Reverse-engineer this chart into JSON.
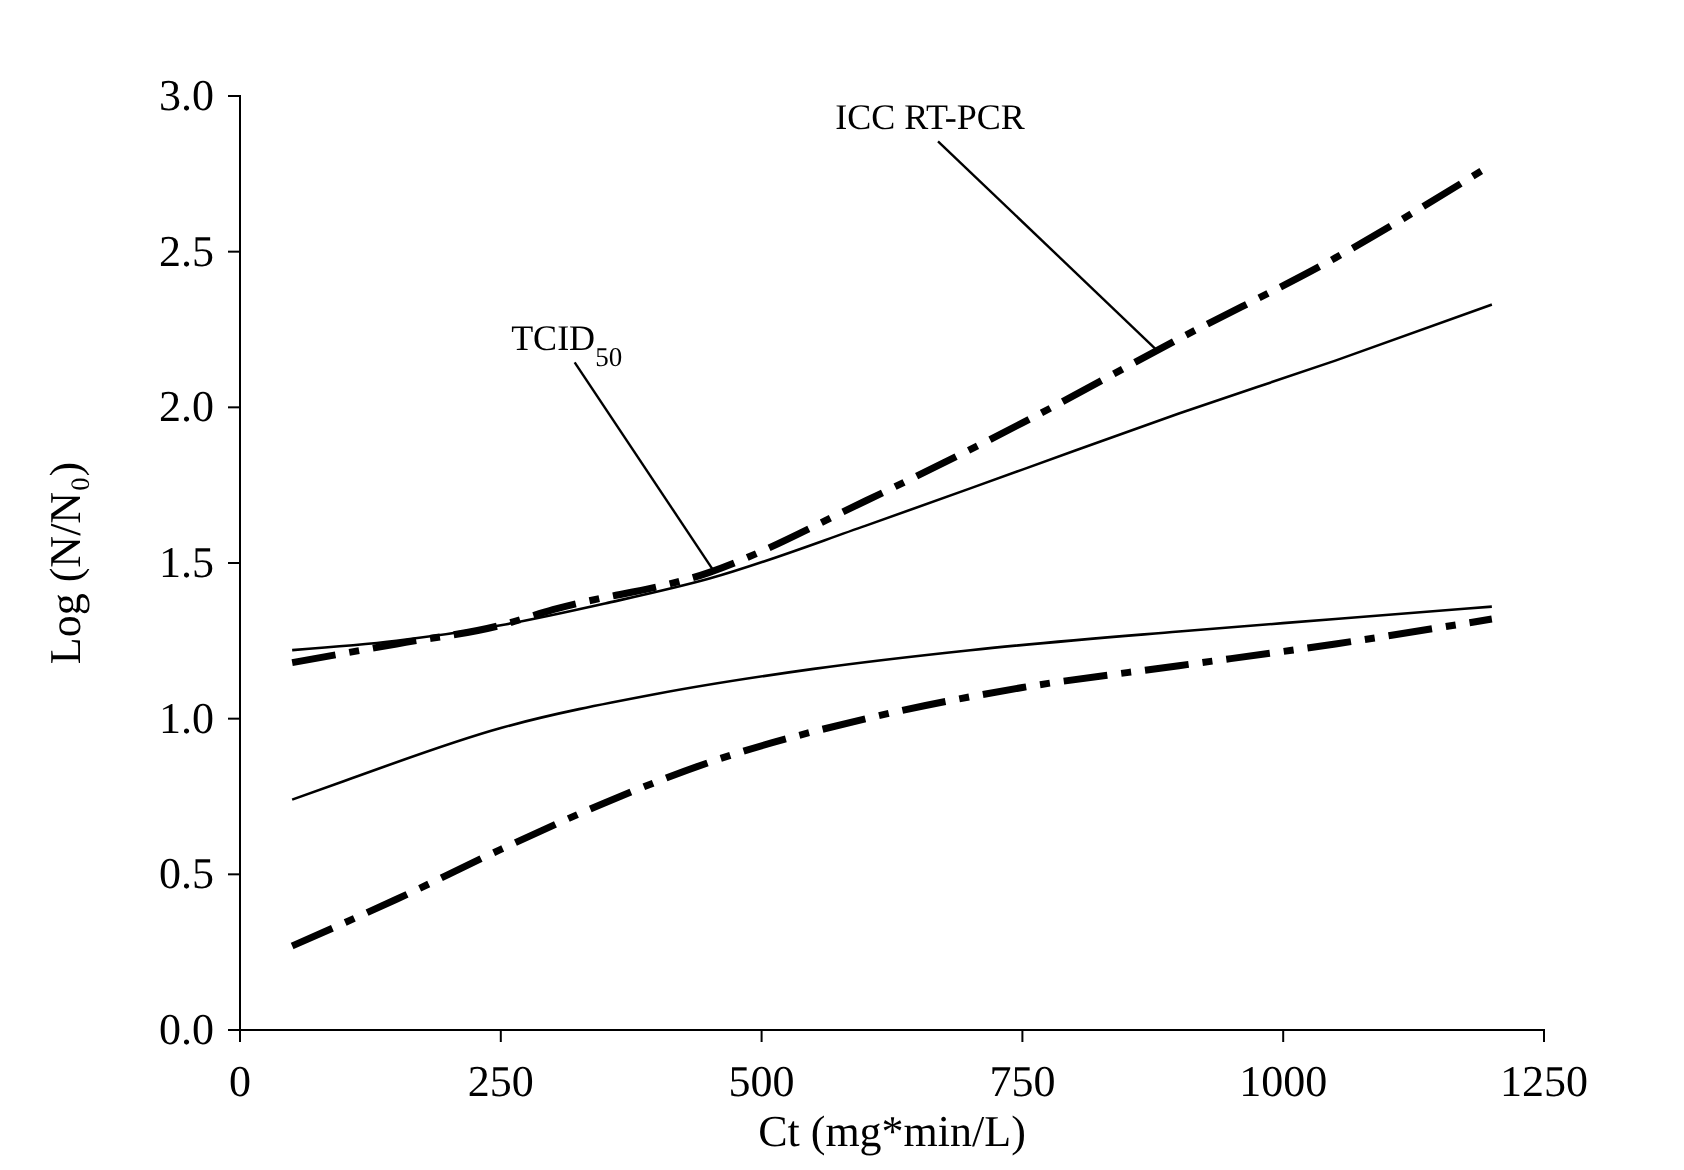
{
  "chart_data": {
    "type": "line",
    "xlabel": "Ct (mg*min/L)",
    "ylabel": "Log (N/N₀)",
    "xlim": [
      0,
      1250
    ],
    "xticks": [
      0,
      250,
      500,
      750,
      1000,
      1250
    ],
    "ylim": [
      0,
      3
    ],
    "yticks": [
      {
        "value": 0,
        "label": "0.0"
      },
      {
        "value": 0.5,
        "label": "0.5"
      },
      {
        "value": 1,
        "label": "1.0"
      },
      {
        "value": 1.5,
        "label": "1.5"
      },
      {
        "value": 2,
        "label": "2.0"
      },
      {
        "value": 2.5,
        "label": "2.5"
      },
      {
        "value": 3,
        "label": "3.0"
      }
    ],
    "grid": false,
    "marker": "none",
    "series": [
      {
        "color": "#000000",
        "line_style": "dashed",
        "x": [
          50,
          150,
          250,
          300,
          450,
          600,
          750,
          900,
          1050,
          1200
        ],
        "values": [
          1.18,
          1.24,
          1.3,
          1.35,
          1.47,
          1.7,
          1.95,
          2.22,
          2.48,
          2.78
        ]
      },
      {
        "color": "#000000",
        "line_style": "solid",
        "x": [
          50,
          150,
          250,
          350,
          450,
          600,
          750,
          900,
          1050,
          1200
        ],
        "values": [
          1.22,
          1.25,
          1.3,
          1.37,
          1.45,
          1.62,
          1.8,
          1.98,
          2.15,
          2.33
        ]
      },
      {
        "color": "#000000",
        "line_style": "solid",
        "x": [
          50,
          100,
          250,
          400,
          550,
          700,
          900,
          1050,
          1200
        ],
        "values": [
          0.74,
          0.8,
          0.97,
          1.08,
          1.16,
          1.22,
          1.28,
          1.32,
          1.36
        ]
      },
      {
        "color": "#000000",
        "line_style": "dashed",
        "x": [
          50,
          150,
          250,
          350,
          450,
          600,
          750,
          900,
          1050,
          1200
        ],
        "values": [
          0.27,
          0.42,
          0.58,
          0.73,
          0.86,
          1.0,
          1.1,
          1.17,
          1.24,
          1.32
        ]
      }
    ],
    "annotations": [
      {
        "text": "TCID$_{50}$",
        "x": 455,
        "y": 1.47
      },
      {
        "text": "ICC RT-PCR",
        "x": 880,
        "y": 2.18
      }
    ]
  }
}
